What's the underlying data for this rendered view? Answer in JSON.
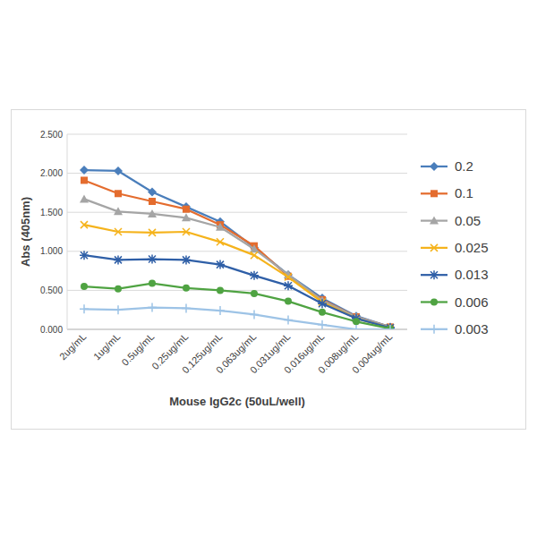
{
  "chart_data": {
    "type": "line",
    "x_label": "Mouse IgG2c (50uL/well)",
    "y_label": "Abs (405nm)",
    "categories": [
      "2ug/mL",
      "1ug/mL",
      "0.5ug/mL",
      "0.25ug/mL",
      "0.125ug/mL",
      "0.063ug/mL",
      "0.031ug/mL",
      "0.016ug/mL",
      "0.008ug/mL",
      "0.004ug/mL"
    ],
    "ylim": [
      0,
      2.5
    ],
    "yticks": [
      {
        "value": 0,
        "label": "0.000"
      },
      {
        "value": 0.5,
        "label": "0.500"
      },
      {
        "value": 1,
        "label": "1.000"
      },
      {
        "value": 1.5,
        "label": "1.500"
      },
      {
        "value": 2,
        "label": "2.000"
      },
      {
        "value": 2.5,
        "label": "2.500"
      }
    ],
    "grid": true,
    "legend": "right",
    "series": [
      {
        "name": "0.2",
        "color": "#4a7ebb",
        "marker": "diamond",
        "values": [
          2.04,
          2.03,
          1.76,
          1.57,
          1.38,
          1.05,
          0.7,
          0.4,
          0.17,
          0.03
        ]
      },
      {
        "name": "0.1",
        "color": "#e46c2e",
        "marker": "square",
        "values": [
          1.91,
          1.74,
          1.64,
          1.54,
          1.34,
          1.07,
          0.68,
          0.38,
          0.16,
          0.03
        ]
      },
      {
        "name": "0.05",
        "color": "#a5a5a5",
        "marker": "triangle",
        "values": [
          1.67,
          1.51,
          1.48,
          1.43,
          1.31,
          1.03,
          0.7,
          0.37,
          0.16,
          0.03
        ]
      },
      {
        "name": "0.025",
        "color": "#f5b31c",
        "marker": "x",
        "values": [
          1.34,
          1.25,
          1.24,
          1.25,
          1.12,
          0.95,
          0.67,
          0.35,
          0.14,
          0.02
        ]
      },
      {
        "name": "0.013",
        "color": "#2f5fa7",
        "marker": "star",
        "values": [
          0.95,
          0.89,
          0.9,
          0.89,
          0.83,
          0.69,
          0.56,
          0.33,
          0.14,
          0.02
        ]
      },
      {
        "name": "0.006",
        "color": "#4fa342",
        "marker": "circle",
        "values": [
          0.55,
          0.52,
          0.59,
          0.53,
          0.5,
          0.46,
          0.36,
          0.22,
          0.1,
          0.01
        ]
      },
      {
        "name": "0.003",
        "color": "#9dc3e6",
        "marker": "plus",
        "values": [
          0.26,
          0.25,
          0.28,
          0.27,
          0.24,
          0.19,
          0.12,
          0.06,
          0.0,
          0.0
        ]
      }
    ]
  }
}
